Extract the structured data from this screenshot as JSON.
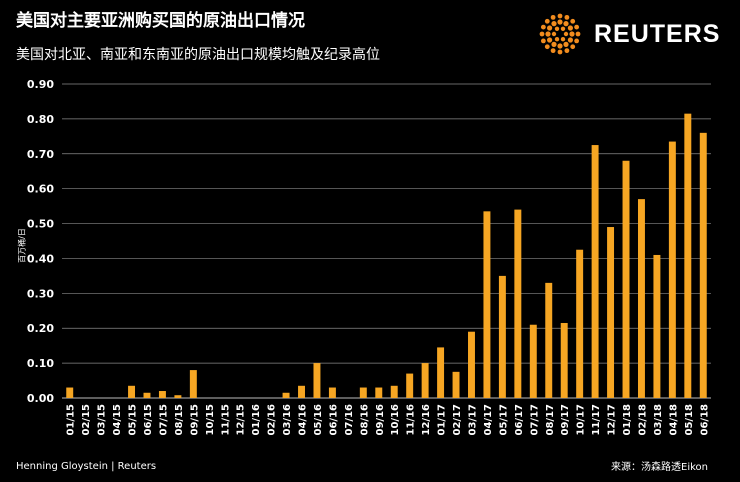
{
  "title": "美国对主要亚洲购买国的原油出口情况",
  "subtitle": "美国对北亚、南亚和东南亚的原油出口规模均触及纪录高位",
  "brand": {
    "name": "REUTERS",
    "accent_color": "#F28C1E"
  },
  "footer": {
    "credit": "Henning Gloystein | Reuters",
    "source": "来源：汤森路透Eikon"
  },
  "colors": {
    "bar": "#F6A623",
    "background": "#000000",
    "grid": "#8a8a8a",
    "text": "#ffffff"
  },
  "chart_data": {
    "type": "bar",
    "ylabel": "百万桶/日",
    "ylim": [
      0,
      0.9
    ],
    "yticks": [
      "0.00",
      "0.10",
      "0.20",
      "0.30",
      "0.40",
      "0.50",
      "0.60",
      "0.70",
      "0.80",
      "0.90"
    ],
    "categories": [
      "01/15",
      "02/15",
      "03/15",
      "04/15",
      "05/15",
      "06/15",
      "07/15",
      "08/15",
      "09/15",
      "10/15",
      "11/15",
      "12/15",
      "01/16",
      "02/16",
      "03/16",
      "04/16",
      "05/16",
      "06/16",
      "07/16",
      "08/16",
      "09/16",
      "10/16",
      "11/16",
      "12/16",
      "01/17",
      "02/17",
      "03/17",
      "04/17",
      "05/17",
      "06/17",
      "07/17",
      "08/17",
      "09/17",
      "10/17",
      "11/17",
      "12/17",
      "01/18",
      "02/18",
      "03/18",
      "04/18",
      "05/18",
      "06/18"
    ],
    "values": [
      0.03,
      0,
      0,
      0,
      0.035,
      0.015,
      0.02,
      0.008,
      0.08,
      0,
      0,
      0,
      0,
      0,
      0.015,
      0.035,
      0.1,
      0.03,
      0,
      0.03,
      0.03,
      0.035,
      0.07,
      0.1,
      0.145,
      0.075,
      0.19,
      0.535,
      0.35,
      0.54,
      0.21,
      0.33,
      0.215,
      0.425,
      0.725,
      0.49,
      0.68,
      0.57,
      0.41,
      0.735,
      0.815,
      0.76
    ]
  }
}
